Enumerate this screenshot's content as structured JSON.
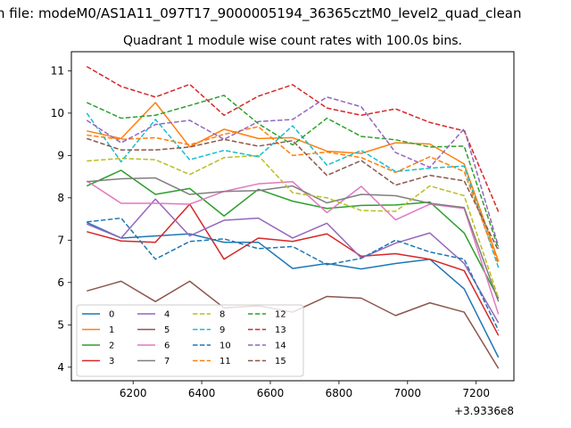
{
  "figure": {
    "suptitle": "n file: modeM0/AS1A11_097T17_9000005194_36365cztM0_level2_quad_clean"
  },
  "chart_data": {
    "type": "line",
    "title": "Quadrant 1 module wise count rates with 100.0s bins.",
    "xlabel": "",
    "ylabel": "",
    "x_offset_label": "+3.9336e8",
    "xlim": [
      6020,
      7310
    ],
    "ylim": [
      3.68,
      11.45
    ],
    "xticks": [
      6200,
      6400,
      6600,
      6800,
      7000,
      7200
    ],
    "xtick_labels": [
      "6200",
      "6400",
      "6600",
      "6800",
      "7000",
      "7200"
    ],
    "yticks": [
      4,
      5,
      6,
      7,
      8,
      9,
      10,
      11
    ],
    "ytick_labels": [
      "4",
      "5",
      "6",
      "7",
      "8",
      "9",
      "10",
      "11"
    ],
    "grid": false,
    "legend": {
      "position": "lower-left",
      "columns": 4
    },
    "x": [
      6065,
      6165,
      6265,
      6365,
      6465,
      6565,
      6665,
      6765,
      6865,
      6965,
      7065,
      7165,
      7265
    ],
    "series": [
      {
        "name": "0",
        "color": "#1f77b4",
        "style": "solid",
        "values": [
          7.42,
          7.05,
          7.1,
          7.15,
          6.95,
          6.95,
          6.33,
          6.45,
          6.32,
          6.45,
          6.55,
          5.85,
          4.23
        ]
      },
      {
        "name": "1",
        "color": "#ff7f0e",
        "style": "solid",
        "values": [
          9.58,
          9.4,
          10.25,
          9.2,
          9.62,
          9.4,
          9.42,
          9.1,
          9.05,
          9.3,
          9.27,
          8.8,
          6.5
        ]
      },
      {
        "name": "2",
        "color": "#2ca02c",
        "style": "solid",
        "values": [
          8.28,
          8.65,
          8.08,
          8.22,
          7.57,
          8.2,
          7.92,
          7.75,
          7.82,
          7.83,
          7.9,
          7.17,
          5.62
        ]
      },
      {
        "name": "3",
        "color": "#d62728",
        "style": "solid",
        "values": [
          7.2,
          6.98,
          6.95,
          7.85,
          6.55,
          7.05,
          6.97,
          7.15,
          6.62,
          6.68,
          6.55,
          6.28,
          4.75
        ]
      },
      {
        "name": "4",
        "color": "#9467bd",
        "style": "solid",
        "values": [
          7.38,
          7.05,
          7.97,
          7.1,
          7.47,
          7.52,
          7.05,
          7.4,
          6.58,
          6.93,
          7.17,
          6.45,
          5.05
        ]
      },
      {
        "name": "5",
        "color": "#8c564b",
        "style": "solid",
        "values": [
          5.8,
          6.03,
          5.55,
          6.03,
          5.4,
          5.45,
          5.3,
          5.67,
          5.63,
          5.22,
          5.52,
          5.3,
          3.97
        ]
      },
      {
        "name": "6",
        "color": "#e377c2",
        "style": "solid",
        "values": [
          8.4,
          7.87,
          7.87,
          7.85,
          8.15,
          8.33,
          8.38,
          7.65,
          8.27,
          7.48,
          7.85,
          7.75,
          5.25
        ]
      },
      {
        "name": "7",
        "color": "#7f7f7f",
        "style": "solid",
        "values": [
          8.38,
          8.45,
          8.47,
          8.08,
          8.15,
          8.17,
          8.28,
          7.88,
          8.08,
          8.05,
          7.87,
          7.77,
          5.55
        ]
      },
      {
        "name": "8",
        "color": "#bcbd22",
        "style": "dashed",
        "values": [
          8.87,
          8.93,
          8.9,
          8.55,
          8.95,
          9.0,
          8.12,
          8.0,
          7.7,
          7.68,
          8.28,
          8.05,
          5.63
        ]
      },
      {
        "name": "9",
        "color": "#17becf",
        "style": "dashed",
        "values": [
          10.0,
          8.85,
          9.85,
          8.9,
          9.12,
          8.97,
          9.7,
          8.77,
          9.12,
          8.62,
          8.7,
          8.75,
          6.35
        ]
      },
      {
        "name": "10",
        "color": "#1f77b4",
        "style": "dashed",
        "values": [
          7.43,
          7.52,
          6.55,
          6.97,
          7.03,
          6.8,
          6.85,
          6.42,
          6.57,
          7.0,
          6.72,
          6.55,
          4.87
        ]
      },
      {
        "name": "11",
        "color": "#ff7f0e",
        "style": "dashed",
        "values": [
          9.48,
          9.38,
          9.42,
          9.25,
          9.5,
          9.68,
          9.0,
          9.08,
          8.95,
          8.6,
          8.97,
          8.62,
          6.43
        ]
      },
      {
        "name": "12",
        "color": "#2ca02c",
        "style": "dashed",
        "values": [
          10.25,
          9.88,
          9.95,
          10.18,
          10.42,
          9.75,
          9.25,
          9.88,
          9.45,
          9.37,
          9.2,
          9.22,
          6.8
        ]
      },
      {
        "name": "13",
        "color": "#d62728",
        "style": "dashed",
        "values": [
          11.1,
          10.63,
          10.38,
          10.68,
          9.95,
          10.4,
          10.67,
          10.12,
          9.95,
          10.1,
          9.78,
          9.58,
          7.67
        ]
      },
      {
        "name": "14",
        "color": "#9467bd",
        "style": "dashed",
        "values": [
          9.83,
          9.3,
          9.73,
          9.83,
          9.38,
          9.8,
          9.85,
          10.38,
          10.15,
          9.07,
          8.72,
          9.63,
          6.85
        ]
      },
      {
        "name": "15",
        "color": "#8c564b",
        "style": "dashed",
        "values": [
          9.4,
          9.13,
          9.13,
          9.2,
          9.38,
          9.22,
          9.35,
          8.53,
          8.88,
          8.3,
          8.53,
          8.4,
          6.75
        ]
      }
    ]
  }
}
